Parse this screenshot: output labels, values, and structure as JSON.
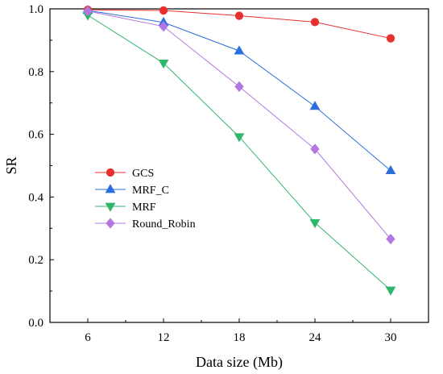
{
  "chart_data": {
    "type": "line",
    "title": "",
    "xlabel": "Data size (Mb)",
    "ylabel": "SR",
    "x": [
      6,
      12,
      18,
      24,
      30
    ],
    "xlim": [
      3,
      33
    ],
    "ylim": [
      0,
      1.0
    ],
    "yticks": [
      0.0,
      0.2,
      0.4,
      0.6,
      0.8,
      1.0
    ],
    "ytick_labels": [
      "0.0",
      "0.2",
      "0.4",
      "0.6",
      "0.8",
      "1.0"
    ],
    "xtick_labels": [
      "6",
      "12",
      "18",
      "24",
      "30"
    ],
    "grid": false,
    "legend_position": "center-left",
    "series": [
      {
        "name": "GCS",
        "values": [
          0.997,
          0.995,
          0.978,
          0.958,
          0.906
        ],
        "color": "#e8312f",
        "marker": "circle"
      },
      {
        "name": "MRF_C",
        "values": [
          0.995,
          0.957,
          0.866,
          0.689,
          0.484
        ],
        "color": "#2a6fdb",
        "marker": "triangle-up"
      },
      {
        "name": "MRF",
        "values": [
          0.98,
          0.827,
          0.592,
          0.318,
          0.103
        ],
        "color": "#2fb66a",
        "marker": "triangle-down"
      },
      {
        "name": "Round_Robin",
        "values": [
          0.993,
          0.944,
          0.752,
          0.553,
          0.266
        ],
        "color": "#b277e0",
        "marker": "diamond"
      }
    ]
  }
}
